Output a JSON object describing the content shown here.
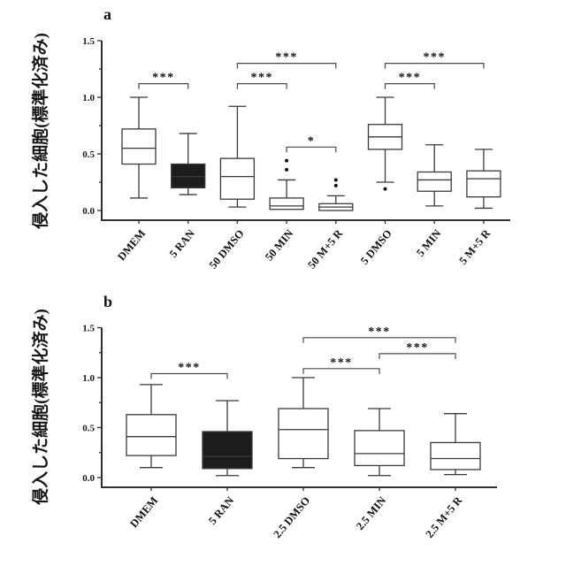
{
  "figure": {
    "background": "#ffffff",
    "panel_count": 2
  },
  "chart_data": [
    {
      "type": "box",
      "panel_label": "a",
      "ylabel": "侵入した細胞(標準化済み)",
      "xlabel": "",
      "ylim": [
        0,
        1.5
      ],
      "yticks": [
        "0.0",
        "0.5",
        "1.0",
        "1.5"
      ],
      "minor_yticks": [
        0.25,
        0.75,
        1.25
      ],
      "grid": "off",
      "legend": "none",
      "categories": [
        "DMEM",
        "5 RAN",
        "50 DMSO",
        "50 MIN",
        "50 M+5 R",
        "5 DMSO",
        "5 MIN",
        "5 M+5 R"
      ],
      "boxes": [
        {
          "category": "DMEM",
          "whisker_low": 0.11,
          "q1": 0.41,
          "median": 0.55,
          "q3": 0.72,
          "whisker_high": 1.0,
          "outliers": [],
          "fill": "white"
        },
        {
          "category": "5 RAN",
          "whisker_low": 0.14,
          "q1": 0.2,
          "median": 0.3,
          "q3": 0.41,
          "whisker_high": 0.68,
          "outliers": [],
          "fill": "black"
        },
        {
          "category": "50 DMSO",
          "whisker_low": 0.03,
          "q1": 0.1,
          "median": 0.3,
          "q3": 0.46,
          "whisker_high": 0.92,
          "outliers": [],
          "fill": "white"
        },
        {
          "category": "50 MIN",
          "whisker_low": 0.01,
          "q1": 0.01,
          "median": 0.04,
          "q3": 0.11,
          "whisker_high": 0.27,
          "outliers": [
            0.36,
            0.44
          ],
          "fill": "white"
        },
        {
          "category": "50 M+5 R",
          "whisker_low": 0.0,
          "q1": 0.0,
          "median": 0.03,
          "q3": 0.06,
          "whisker_high": 0.13,
          "outliers": [
            0.22,
            0.27
          ],
          "fill": "white"
        },
        {
          "category": "5 DMSO",
          "whisker_low": 0.25,
          "q1": 0.54,
          "median": 0.65,
          "q3": 0.76,
          "whisker_high": 1.0,
          "outliers": [
            0.19
          ],
          "fill": "white"
        },
        {
          "category": "5 MIN",
          "whisker_low": 0.04,
          "q1": 0.17,
          "median": 0.27,
          "q3": 0.34,
          "whisker_high": 0.58,
          "outliers": [],
          "fill": "white"
        },
        {
          "category": "5 M+5 R",
          "whisker_low": 0.02,
          "q1": 0.12,
          "median": 0.28,
          "q3": 0.35,
          "whisker_high": 0.54,
          "outliers": [],
          "fill": "white"
        }
      ],
      "significance": [
        {
          "from": 0,
          "to": 1,
          "y": 1.12,
          "label": "***"
        },
        {
          "from": 2,
          "to": 3,
          "y": 1.12,
          "label": "***"
        },
        {
          "from": 2,
          "to": 4,
          "y": 1.3,
          "label": "***"
        },
        {
          "from": 3,
          "to": 4,
          "y": 0.56,
          "label": "*"
        },
        {
          "from": 5,
          "to": 6,
          "y": 1.12,
          "label": "***"
        },
        {
          "from": 5,
          "to": 7,
          "y": 1.3,
          "label": "***"
        }
      ],
      "colors": {
        "box_white": "#ffffff",
        "box_black": "#1c1c1c",
        "line": "#3a3a3a"
      }
    },
    {
      "type": "box",
      "panel_label": "b",
      "ylabel": "侵入した細胞(標準化済み)",
      "xlabel": "",
      "ylim": [
        0,
        1.5
      ],
      "yticks": [
        "0.0",
        "0.5",
        "1.0",
        "1.5"
      ],
      "minor_yticks": [
        0.25,
        0.75,
        1.25
      ],
      "grid": "off",
      "legend": "none",
      "categories": [
        "DMEM",
        "5 RAN",
        "2.5 DMSO",
        "2.5 MIN",
        "2.5 M+5 R"
      ],
      "boxes": [
        {
          "category": "DMEM",
          "whisker_low": 0.1,
          "q1": 0.22,
          "median": 0.41,
          "q3": 0.63,
          "whisker_high": 0.93,
          "outliers": [],
          "fill": "white"
        },
        {
          "category": "5 RAN",
          "whisker_low": 0.02,
          "q1": 0.09,
          "median": 0.21,
          "q3": 0.46,
          "whisker_high": 0.77,
          "outliers": [],
          "fill": "black"
        },
        {
          "category": "2.5 DMSO",
          "whisker_low": 0.1,
          "q1": 0.19,
          "median": 0.48,
          "q3": 0.69,
          "whisker_high": 1.0,
          "outliers": [],
          "fill": "white"
        },
        {
          "category": "2.5 MIN",
          "whisker_low": 0.02,
          "q1": 0.12,
          "median": 0.24,
          "q3": 0.47,
          "whisker_high": 0.69,
          "outliers": [],
          "fill": "white"
        },
        {
          "category": "2.5 M+5 R",
          "whisker_low": 0.03,
          "q1": 0.08,
          "median": 0.19,
          "q3": 0.35,
          "whisker_high": 0.64,
          "outliers": [],
          "fill": "white"
        }
      ],
      "significance": [
        {
          "from": 0,
          "to": 1,
          "y": 1.04,
          "label": "***"
        },
        {
          "from": 2,
          "to": 3,
          "y": 1.09,
          "label": "***"
        },
        {
          "from": 3,
          "to": 4,
          "y": 1.24,
          "label": "***"
        },
        {
          "from": 2,
          "to": 4,
          "y": 1.4,
          "label": "***"
        }
      ],
      "colors": {
        "box_white": "#ffffff",
        "box_black": "#1c1c1c",
        "line": "#3a3a3a"
      }
    }
  ]
}
